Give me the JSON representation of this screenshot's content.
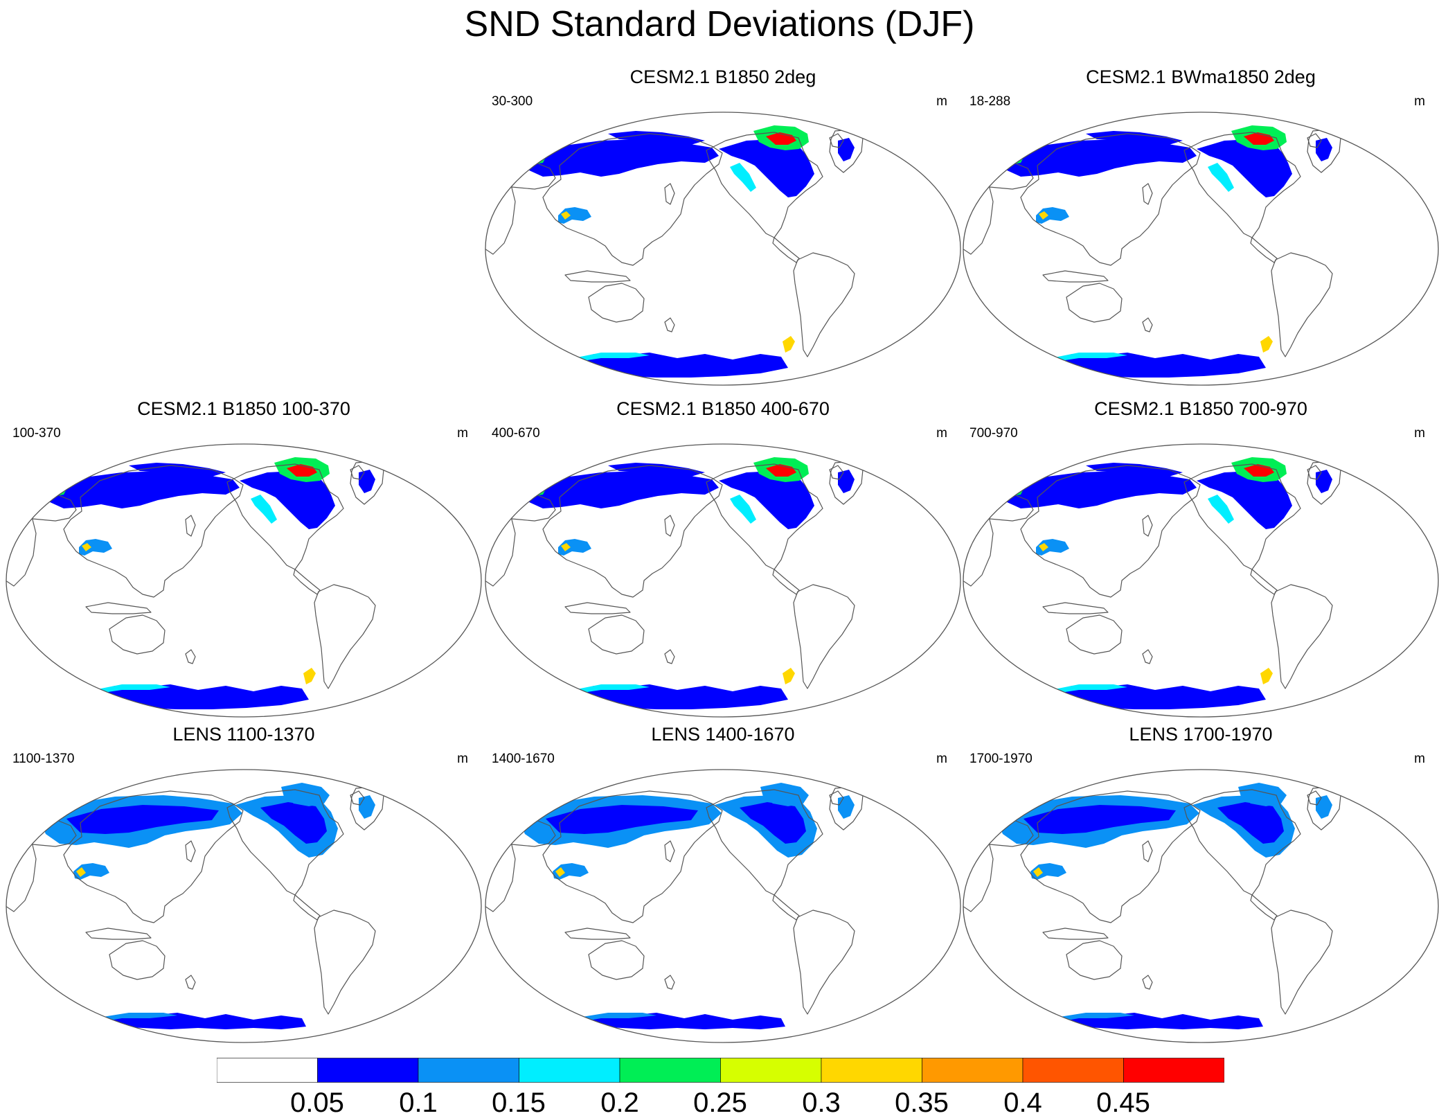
{
  "title": "SND Standard Deviations (DJF)",
  "panels": [
    {
      "title": "CESM2.1 B1850 2deg",
      "left_label": "30-300",
      "right_label": "m",
      "style": "cesm2"
    },
    {
      "title": "CESM2.1 BWma1850 2deg",
      "left_label": "18-288",
      "right_label": "m",
      "style": "cesm2"
    },
    {
      "title": "CESM2.1 B1850 100-370",
      "left_label": "100-370",
      "right_label": "m",
      "style": "cesm2"
    },
    {
      "title": "CESM2.1 B1850 400-670",
      "left_label": "400-670",
      "right_label": "m",
      "style": "cesm2"
    },
    {
      "title": "CESM2.1 B1850 700-970",
      "left_label": "700-970",
      "right_label": "m",
      "style": "cesm2"
    },
    {
      "title": "LENS 1100-1370",
      "left_label": "1100-1370",
      "right_label": "m",
      "style": "lens"
    },
    {
      "title": "LENS 1400-1670",
      "left_label": "1400-1670",
      "right_label": "m",
      "style": "lens"
    },
    {
      "title": "LENS 1700-1970",
      "left_label": "1700-1970",
      "right_label": "m",
      "style": "lens"
    }
  ],
  "colorbar": {
    "labels": [
      "0.05",
      "0.1",
      "0.15",
      "0.2",
      "0.25",
      "0.3",
      "0.35",
      "0.4",
      "0.45"
    ],
    "colors": [
      "#ffffff",
      "#0000ff",
      "#0a91f5",
      "#00eeff",
      "#00ee55",
      "#d6ff00",
      "#ffd700",
      "#ff9900",
      "#ff5500",
      "#ff0000"
    ]
  }
}
